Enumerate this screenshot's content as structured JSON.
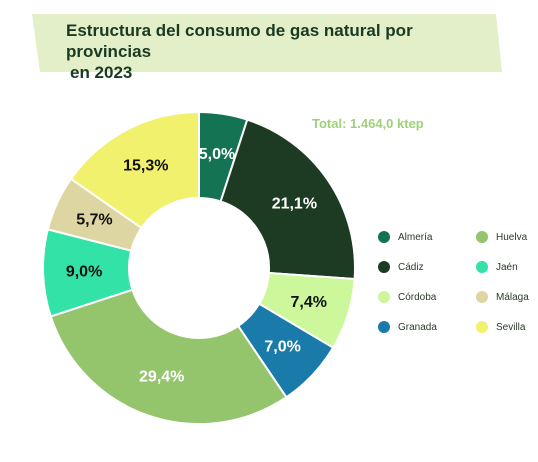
{
  "header": {
    "title_line1": "Estructura del consumo de gas natural por provincias",
    "title_line2": "en 2023"
  },
  "total_label": "Total: 1.464,0 ktep",
  "colors": {
    "banner": "#e3efc9",
    "title_text": "#1a3a22",
    "total_text": "#9fd07c"
  },
  "chart_data": {
    "type": "pie",
    "donut": true,
    "total": "1.464,0 ktep",
    "legend_position": "right",
    "slices": [
      {
        "name": "Almería",
        "value": 5.0,
        "label": "5,0%",
        "color": "#147352",
        "label_color": "#ffffff"
      },
      {
        "name": "Cádiz",
        "value": 21.1,
        "label": "21,1%",
        "color": "#1d3b23",
        "label_color": "#ffffff"
      },
      {
        "name": "Córdoba",
        "value": 7.4,
        "label": "7,4%",
        "color": "#cdf79b",
        "label_color": "#111111"
      },
      {
        "name": "Granada",
        "value": 7.0,
        "label": "7,0%",
        "color": "#1a7aa9",
        "label_color": "#ffffff"
      },
      {
        "name": "Huelva",
        "value": 29.4,
        "label": "29,4%",
        "color": "#94c46c",
        "label_color": "#ffffff"
      },
      {
        "name": "Jaén",
        "value": 9.0,
        "label": "9,0%",
        "color": "#33e2a6",
        "label_color": "#111111"
      },
      {
        "name": "Málaga",
        "value": 5.7,
        "label": "5,7%",
        "color": "#ddd6a2",
        "label_color": "#111111"
      },
      {
        "name": "Sevilla",
        "value": 15.3,
        "label": "15,3%",
        "color": "#f1f16e",
        "label_color": "#111111"
      }
    ]
  },
  "legend": {
    "items": [
      {
        "label": "Almería",
        "color": "#147352"
      },
      {
        "label": "Huelva",
        "color": "#94c46c"
      },
      {
        "label": "Cádiz",
        "color": "#1d3b23"
      },
      {
        "label": "Jaén",
        "color": "#33e2a6"
      },
      {
        "label": "Córdoba",
        "color": "#cdf79b"
      },
      {
        "label": "Málaga",
        "color": "#ddd6a2"
      },
      {
        "label": "Granada",
        "color": "#1a7aa9"
      },
      {
        "label": "Sevilla",
        "color": "#f1f16e"
      }
    ]
  }
}
